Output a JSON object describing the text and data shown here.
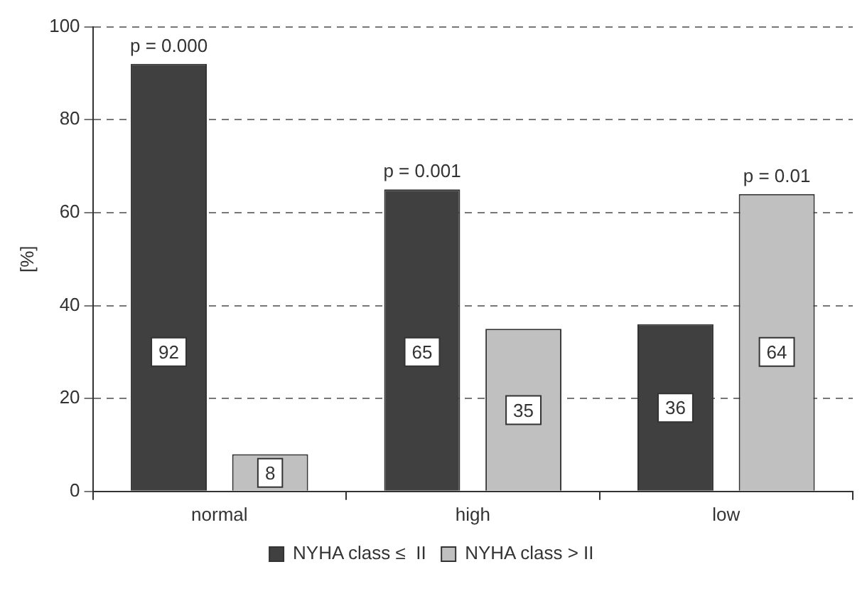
{
  "chart_data": {
    "type": "bar",
    "ylabel": "[%]",
    "categories": [
      "normal",
      "high",
      "low"
    ],
    "series": [
      {
        "name": "NYHA class ≤  II",
        "color": "#404040",
        "values": [
          92,
          65,
          36
        ]
      },
      {
        "name": "NYHA class > II",
        "color": "#c0c0c0",
        "values": [
          8,
          35,
          64
        ]
      }
    ],
    "ylim": [
      0,
      100
    ],
    "yticks": [
      0,
      20,
      40,
      60,
      80,
      100
    ],
    "grid": "y",
    "line_style": "dashed",
    "legend": "bottom",
    "data_labels": true,
    "annotations": [
      "p = 0.000",
      "p = 0.001",
      "p = 0.01"
    ]
  }
}
